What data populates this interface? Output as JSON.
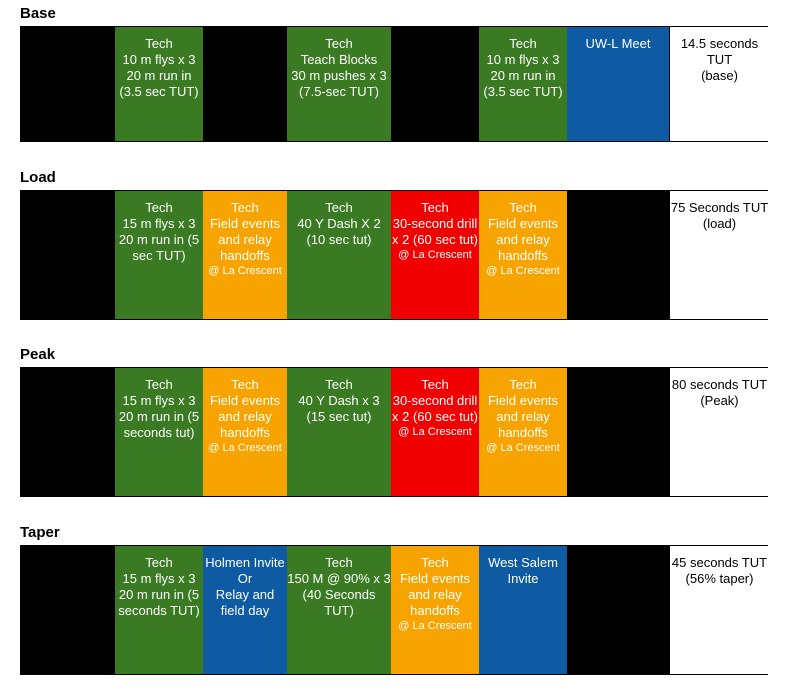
{
  "sections": [
    {
      "title": "Base",
      "cells": [
        {
          "color": "black",
          "main": "",
          "sub": ""
        },
        {
          "color": "green",
          "main": "Tech\n10 m flys x 3\n20 m run in (3.5 sec TUT)",
          "sub": ""
        },
        {
          "color": "black",
          "main": "",
          "sub": ""
        },
        {
          "color": "green",
          "main": "Tech\nTeach Blocks\n30 m pushes x 3\n(7.5-sec TUT)",
          "sub": ""
        },
        {
          "color": "black",
          "main": "",
          "sub": ""
        },
        {
          "color": "green",
          "main": "Tech\n10 m flys x 3\n20 m run in (3.5 sec TUT)",
          "sub": ""
        },
        {
          "color": "blue",
          "main": "UW-L Meet",
          "sub": ""
        },
        {
          "color": "white",
          "main": "14.5 seconds TUT\n(base)",
          "sub": ""
        }
      ]
    },
    {
      "title": "Load",
      "cells": [
        {
          "color": "black",
          "main": "",
          "sub": ""
        },
        {
          "color": "green",
          "main": "Tech\n15 m flys x 3\n20 m run in (5 sec TUT)",
          "sub": ""
        },
        {
          "color": "orange",
          "main": "Tech\nField events and relay handoffs",
          "sub": "@ La Crescent"
        },
        {
          "color": "green",
          "main": "Tech\n40  Y Dash X 2\n(10 sec tut)",
          "sub": ""
        },
        {
          "color": "red",
          "main": "Tech\n30-second drill x 2 (60 sec tut)",
          "sub": "@ La Crescent"
        },
        {
          "color": "orange",
          "main": "Tech\nField events and relay handoffs",
          "sub": "@ La Crescent"
        },
        {
          "color": "black",
          "main": "",
          "sub": ""
        },
        {
          "color": "white",
          "main": "75 Seconds TUT\n(load)",
          "sub": ""
        }
      ]
    },
    {
      "title": "Peak",
      "cells": [
        {
          "color": "black",
          "main": "",
          "sub": ""
        },
        {
          "color": "green",
          "main": "Tech\n15 m flys x 3\n20 m run in (5 seconds tut)",
          "sub": ""
        },
        {
          "color": "orange",
          "main": "Tech\nField events and relay handoffs",
          "sub": "@ La Crescent"
        },
        {
          "color": "green",
          "main": "Tech\n40 Y Dash x 3\n(15 sec tut)",
          "sub": ""
        },
        {
          "color": "red",
          "main": "Tech\n30-second drill x 2 (60 sec tut)",
          "sub": "@ La Crescent"
        },
        {
          "color": "orange",
          "main": "Tech\nField events and relay handoffs",
          "sub": "@ La Crescent"
        },
        {
          "color": "black",
          "main": "",
          "sub": ""
        },
        {
          "color": "white",
          "main": "80 seconds TUT\n(Peak)",
          "sub": ""
        }
      ]
    },
    {
      "title": "Taper",
      "cells": [
        {
          "color": "black",
          "main": "",
          "sub": ""
        },
        {
          "color": "green",
          "main": "Tech\n15  m flys x 3\n20 m run in (5 seconds TUT)",
          "sub": ""
        },
        {
          "color": "blue",
          "main": "Holmen Invite\nOr\nRelay and field day",
          "sub": ""
        },
        {
          "color": "green",
          "main": "Tech\n150 M @ 90% x 3\n(40 Seconds TUT)",
          "sub": ""
        },
        {
          "color": "orange",
          "main": "Tech\nField events and relay handoffs",
          "sub": "@ La Crescent"
        },
        {
          "color": "blue",
          "main": "West Salem Invite",
          "sub": ""
        },
        {
          "color": "black",
          "main": "",
          "sub": ""
        },
        {
          "color": "white",
          "main": "45 seconds TUT\n(56% taper)",
          "sub": ""
        }
      ]
    }
  ]
}
